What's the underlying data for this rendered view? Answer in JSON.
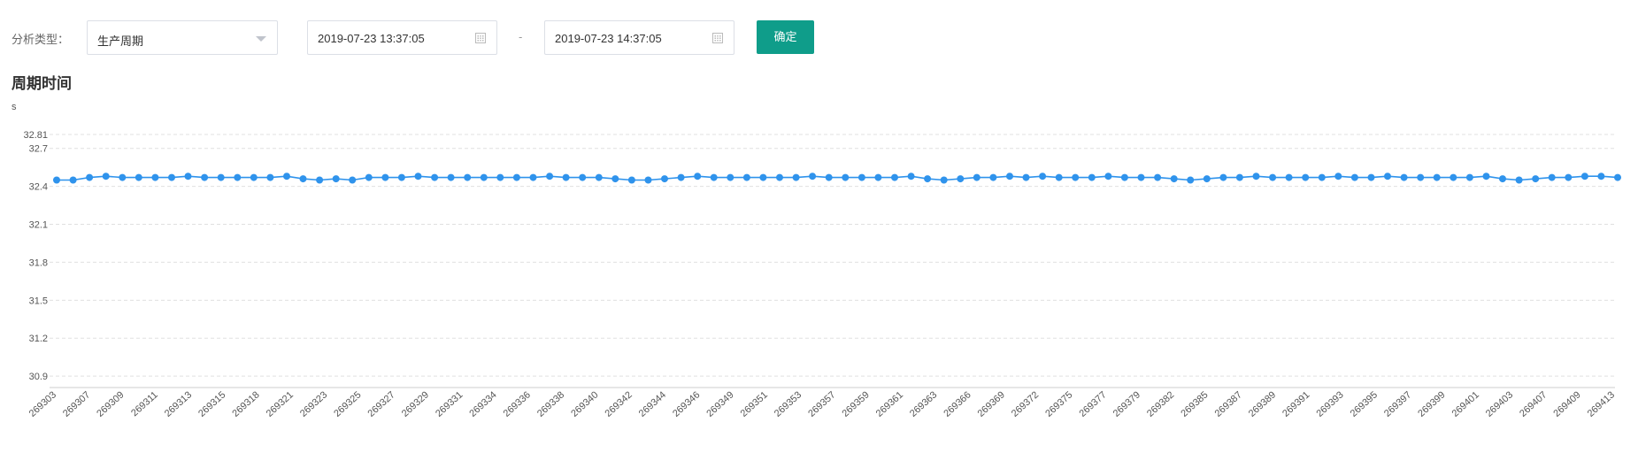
{
  "filters": {
    "type_label": "分析类型：",
    "type_value": "生产周期",
    "start_time": "2019-07-23 13:37:05",
    "separator": "-",
    "end_time": "2019-07-23 14:37:05",
    "confirm_label": "确定"
  },
  "colors": {
    "line": "#2f93ec",
    "accent": "#0f9d8a",
    "grid": "#e0e0e0"
  },
  "chart_data": {
    "type": "line",
    "title": "周期时间",
    "ylabel": "s",
    "ylim": [
      30.81,
      32.81
    ],
    "yticks": [
      32.81,
      32.7,
      32.4,
      32.1,
      31.8,
      31.5,
      31.2,
      30.9
    ],
    "x_tick_labels": [
      "269303",
      "269307",
      "269309",
      "269311",
      "269313",
      "269315",
      "269318",
      "269321",
      "269323",
      "269325",
      "269327",
      "269329",
      "269331",
      "269334",
      "269336",
      "269338",
      "269340",
      "269342",
      "269344",
      "269346",
      "269349",
      "269351",
      "269353",
      "269357",
      "269359",
      "269361",
      "269363",
      "269366",
      "269369",
      "269372",
      "269375",
      "269377",
      "269379",
      "269382",
      "269385",
      "269387",
      "269389",
      "269391",
      "269393",
      "269395",
      "269397",
      "269399",
      "269401",
      "269403",
      "269407",
      "269409",
      "269413"
    ],
    "series": [
      {
        "values": [
          32.45,
          32.45,
          32.47,
          32.48,
          32.47,
          32.47,
          32.47,
          32.47,
          32.48,
          32.47,
          32.47,
          32.47,
          32.47,
          32.47,
          32.48,
          32.46,
          32.45,
          32.46,
          32.45,
          32.47,
          32.47,
          32.47,
          32.48,
          32.47,
          32.47,
          32.47,
          32.47,
          32.47,
          32.47,
          32.47,
          32.48,
          32.47,
          32.47,
          32.47,
          32.46,
          32.45,
          32.45,
          32.46,
          32.47,
          32.48,
          32.47,
          32.47,
          32.47,
          32.47,
          32.47,
          32.47,
          32.48,
          32.47,
          32.47,
          32.47,
          32.47,
          32.47,
          32.48,
          32.46,
          32.45,
          32.46,
          32.47,
          32.47,
          32.48,
          32.47,
          32.48,
          32.47,
          32.47,
          32.47,
          32.48,
          32.47,
          32.47,
          32.47,
          32.46,
          32.45,
          32.46,
          32.47,
          32.47,
          32.48,
          32.47,
          32.47,
          32.47,
          32.47,
          32.48,
          32.47,
          32.47,
          32.48,
          32.47,
          32.47,
          32.47,
          32.47,
          32.47,
          32.48,
          32.46,
          32.45,
          32.46,
          32.47,
          32.47,
          32.48,
          32.48,
          32.47
        ]
      }
    ]
  }
}
